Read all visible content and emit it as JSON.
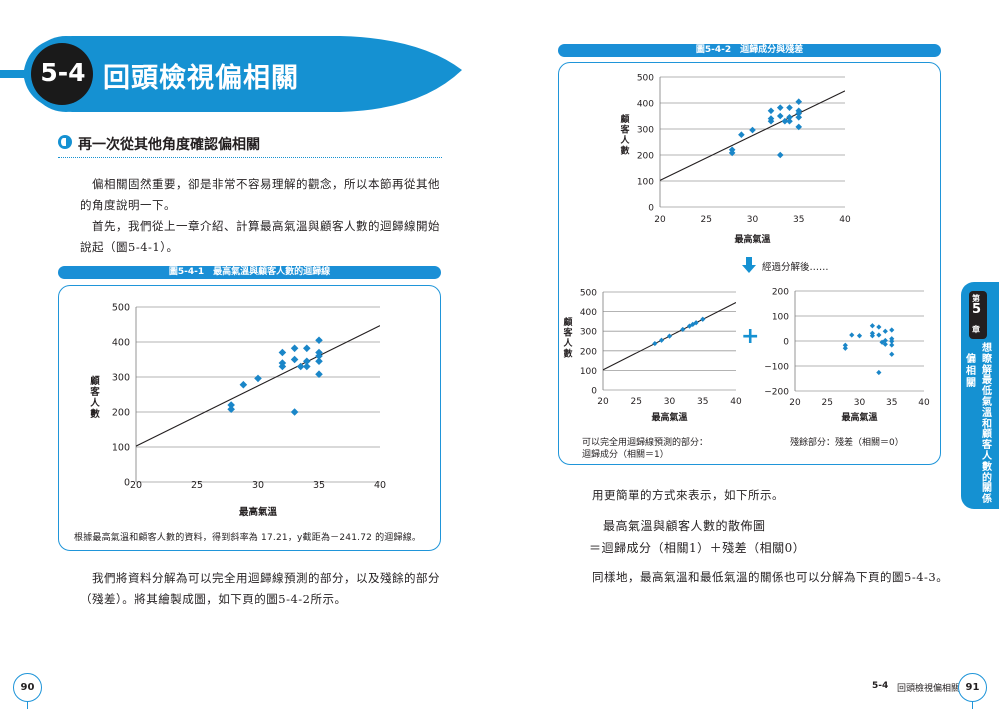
{
  "left_page": {
    "section_number": "5-4",
    "section_title": "回頭檢視偏相關",
    "subheading": "再一次從其他角度確認偏相關",
    "paragraphs": [
      "偏相關固然重要，卻是非常不容易理解的觀念，所以本節再從其他",
      "的角度說明一下。",
      "首先，我們從上一章介紹、計算最高氣溫與顧客人數的迴歸線開始",
      "說起（圖5-4-1）。"
    ],
    "figure_caption": "圖5-4-1　最高氣溫與顧客人數的迴歸線",
    "figure_note": "根據最高氣溫和顧客人數的資料，得到斜率為 17.21，y截距為－241.72 的迴歸線。",
    "bottom_paragraphs": [
      "我們將資料分解為可以完全用迴歸線預測的部分，以及殘餘的部分",
      "（殘差）。將其繪製成圖，如下頁的圖5-4-2所示。"
    ],
    "page_number": "90"
  },
  "right_page": {
    "figure_caption": "圖5-4-2　迴歸成分與殘差",
    "arrow_label": "經過分解後……",
    "plus_sign": "+",
    "left_note_line1": "可以完全用迴歸線預測的部分：",
    "left_note_line2": "迴歸成分（相關＝1）",
    "right_note": "殘餘部分：殘差（相關＝0）",
    "para1": "用更簡單的方式來表示，如下所示。",
    "formula_line1": "最高氣溫與顧客人數的散佈圖",
    "formula_line2": "＝迴歸成分（相關1）＋殘差（相關0）",
    "para2": "同樣地，最高氣溫和最低氣溫的關係也可以分解為下頁的圖5-4-3。",
    "footer_section": "5-4",
    "footer_title": "回頭檢視偏相關",
    "page_number": "91",
    "side_tab": {
      "chapter_prefix": "第",
      "chapter_number": "5",
      "chapter_suffix": "章",
      "title": "想瞭解最低氣溫和顧客人數的關係",
      "subtitle": "偏相關"
    }
  },
  "colors": {
    "accent": "#1591d2",
    "point": "#1a86c8",
    "line": "#231f20"
  },
  "chart_data": [
    {
      "id": "fig-5-4-1",
      "type": "scatter",
      "xlabel": "最高氣溫",
      "ylabel": "顧客人數",
      "xlim": [
        20,
        40
      ],
      "ylim": [
        0,
        500
      ],
      "xticks": [
        20,
        25,
        30,
        35,
        40
      ],
      "yticks": [
        0,
        100,
        200,
        300,
        400,
        500
      ],
      "grid": true,
      "points": [
        [
          27.8,
          220
        ],
        [
          27.8,
          208
        ],
        [
          28.8,
          278
        ],
        [
          30,
          296
        ],
        [
          32,
          370
        ],
        [
          32,
          340
        ],
        [
          32,
          330
        ],
        [
          33,
          382
        ],
        [
          33,
          350
        ],
        [
          33,
          200
        ],
        [
          33.5,
          330
        ],
        [
          34,
          382
        ],
        [
          34,
          345
        ],
        [
          34,
          330
        ],
        [
          35,
          405
        ],
        [
          35,
          370
        ],
        [
          35,
          360
        ],
        [
          35,
          345
        ],
        [
          35,
          308
        ]
      ],
      "regression_line": {
        "slope": 17.21,
        "intercept": -241.72
      }
    },
    {
      "id": "fig-5-4-2-original",
      "type": "scatter",
      "xlabel": "最高氣溫",
      "ylabel": "顧客人數",
      "xlim": [
        20,
        40
      ],
      "ylim": [
        0,
        500
      ],
      "xticks": [
        20,
        25,
        30,
        35,
        40
      ],
      "yticks": [
        0,
        100,
        200,
        300,
        400,
        500
      ],
      "grid": true,
      "points": [
        [
          27.8,
          220
        ],
        [
          27.8,
          208
        ],
        [
          28.8,
          278
        ],
        [
          30,
          296
        ],
        [
          32,
          370
        ],
        [
          32,
          340
        ],
        [
          32,
          330
        ],
        [
          33,
          382
        ],
        [
          33,
          350
        ],
        [
          33,
          200
        ],
        [
          33.5,
          330
        ],
        [
          34,
          382
        ],
        [
          34,
          345
        ],
        [
          34,
          330
        ],
        [
          35,
          405
        ],
        [
          35,
          370
        ],
        [
          35,
          360
        ],
        [
          35,
          345
        ],
        [
          35,
          308
        ]
      ],
      "regression_line": {
        "slope": 17.21,
        "intercept": -241.72
      }
    },
    {
      "id": "fig-5-4-2-regression",
      "type": "scatter",
      "xlabel": "最高氣溫",
      "ylabel": "顧客人數",
      "xlim": [
        20,
        40
      ],
      "ylim": [
        0,
        500
      ],
      "xticks": [
        20,
        25,
        30,
        35,
        40
      ],
      "yticks": [
        0,
        100,
        200,
        300,
        400,
        500
      ],
      "grid": true,
      "points": [
        [
          27.8,
          237
        ],
        [
          28.8,
          254
        ],
        [
          30,
          275
        ],
        [
          32,
          309
        ],
        [
          33,
          326
        ],
        [
          33.5,
          335
        ],
        [
          34,
          343
        ],
        [
          35,
          361
        ]
      ],
      "regression_line": {
        "slope": 17.21,
        "intercept": -241.72
      }
    },
    {
      "id": "fig-5-4-2-residual",
      "type": "scatter",
      "xlabel": "最高氣溫",
      "ylabel": "",
      "xlim": [
        20,
        40
      ],
      "ylim": [
        -200,
        200
      ],
      "xticks": [
        20,
        25,
        30,
        35,
        40
      ],
      "yticks": [
        -200,
        -100,
        0,
        100,
        200
      ],
      "grid": true,
      "points": [
        [
          27.8,
          -17
        ],
        [
          27.8,
          -29
        ],
        [
          28.8,
          24
        ],
        [
          30,
          21
        ],
        [
          32,
          61
        ],
        [
          32,
          31
        ],
        [
          32,
          21
        ],
        [
          33,
          56
        ],
        [
          33,
          24
        ],
        [
          33,
          -126
        ],
        [
          33.5,
          -5
        ],
        [
          34,
          39
        ],
        [
          34,
          2
        ],
        [
          34,
          -13
        ],
        [
          35,
          44
        ],
        [
          35,
          9
        ],
        [
          35,
          -1
        ],
        [
          35,
          -16
        ],
        [
          35,
          -53
        ]
      ],
      "regression_line": null
    }
  ]
}
